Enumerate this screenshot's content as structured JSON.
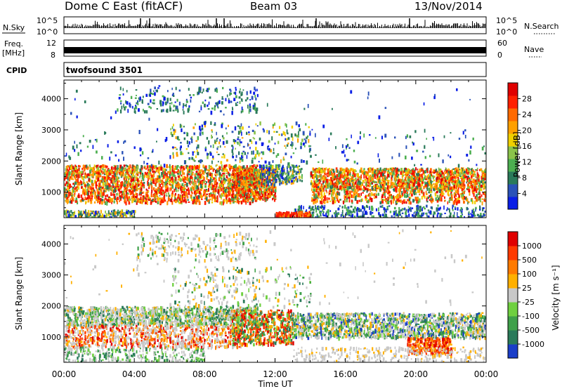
{
  "header": {
    "station": "Dome C East (fitACF)",
    "beam": "Beam 03",
    "date": "13/Nov/2014"
  },
  "strips": {
    "nsky_label": "N.Sky",
    "nsky_ticks": [
      "10^5",
      "10^0"
    ],
    "nsearch_label": "N.Search",
    "freq_label": "Freq.",
    "freq_unit": "[MHz]",
    "freq_ticks": [
      "12",
      "8"
    ],
    "nave_label": "Nave",
    "nave_ticks": [
      "60",
      "0"
    ],
    "cpid_label": "CPID",
    "cpid_value": "twofsound 3501"
  },
  "chart_data": [
    {
      "type": "heatmap",
      "name": "power",
      "ylabel": "Slant Range [km]",
      "y_ticks": [
        1000,
        2000,
        3000,
        4000
      ],
      "ylim": [
        180,
        4600
      ],
      "colorbar_label": "Power [dB]",
      "colorbar_ticks": [
        "4",
        "8",
        "12",
        "16",
        "20",
        "24",
        "28"
      ],
      "colorbar_colors": [
        "#0a1ee6",
        "#2a52b8",
        "#2a7a5a",
        "#4caf50",
        "#8bc34a",
        "#f0d000",
        "#ffa000",
        "#ff6a00",
        "#ff2000",
        "#e00000"
      ],
      "echo_bands": [
        {
          "km": [
            700,
            1900
          ],
          "hours": [
            0,
            24
          ]
        },
        {
          "km": [
            3600,
            4400
          ],
          "hours": [
            3,
            11
          ]
        }
      ]
    },
    {
      "type": "heatmap",
      "name": "velocity",
      "ylabel": "Slant Range [km]",
      "y_ticks": [
        1000,
        2000,
        3000,
        4000
      ],
      "ylim": [
        180,
        4600
      ],
      "colorbar_label": "Velocity [m s⁻¹]",
      "colorbar_ticks": [
        "1000",
        "500",
        "100",
        "25",
        "-25",
        "-100",
        "-500",
        "-1000"
      ],
      "colorbar_colors": [
        "#1a3ec8",
        "#2a7a5a",
        "#3fa04a",
        "#6fd040",
        "#c8c8c8",
        "#ffb000",
        "#ff7a00",
        "#ff3a00",
        "#e00000"
      ]
    }
  ],
  "xaxis": {
    "label": "Time UT",
    "ticks": [
      "00:00",
      "04:00",
      "08:00",
      "12:00",
      "16:00",
      "20:00",
      "00:00"
    ],
    "range_hours": [
      0,
      24
    ]
  }
}
